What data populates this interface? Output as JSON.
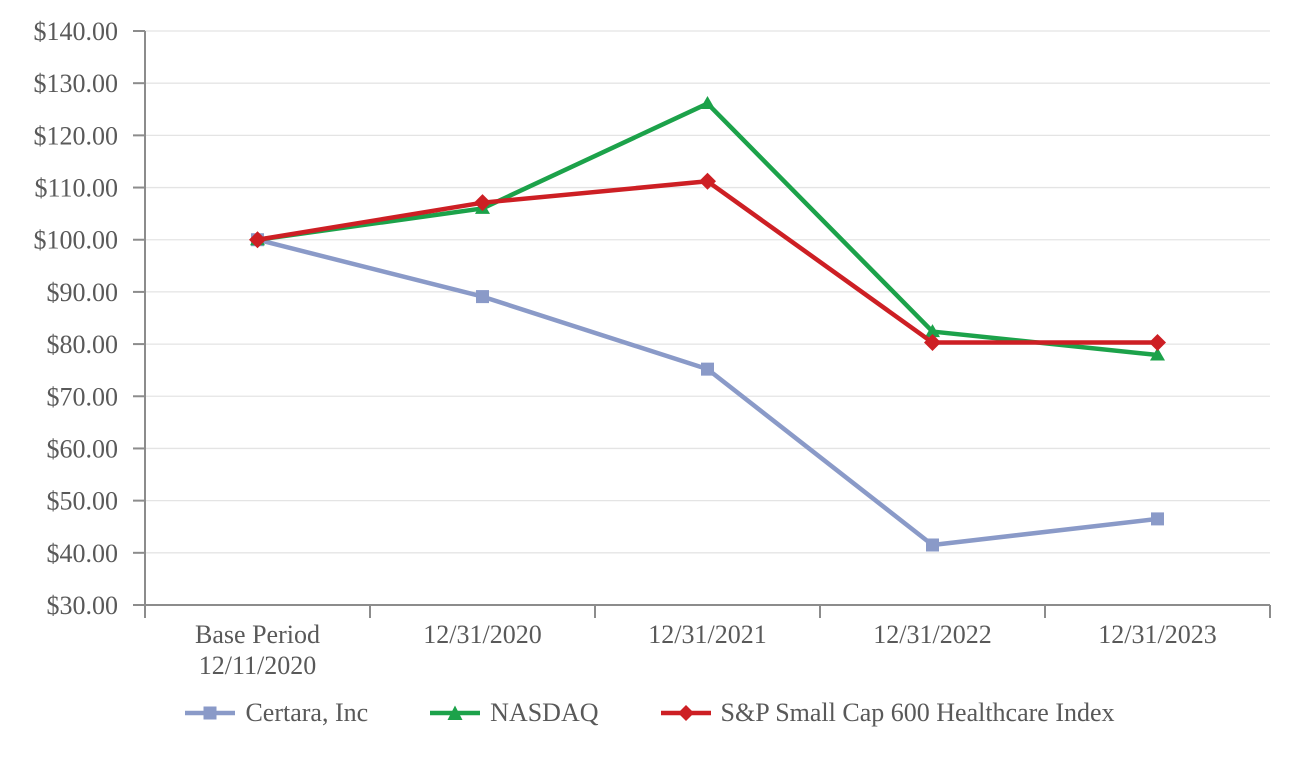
{
  "chart_data": {
    "type": "line",
    "title": "",
    "xlabel": "",
    "ylabel": "",
    "categories": [
      [
        "Base Period",
        "12/11/2020"
      ],
      [
        "12/31/2020"
      ],
      [
        "12/31/2021"
      ],
      [
        "12/31/2022"
      ],
      [
        "12/31/2023"
      ]
    ],
    "series": [
      {
        "name": "Certara, Inc",
        "marker": "square",
        "color": "#8A9AC8",
        "values": [
          100.0,
          89.1,
          75.2,
          41.5,
          46.5
        ]
      },
      {
        "name": "NASDAQ",
        "marker": "triangle",
        "color": "#1CA24A",
        "values": [
          100.0,
          106.0,
          126.1,
          82.4,
          77.9
        ]
      },
      {
        "name": "S&P Small Cap 600 Healthcare Index",
        "marker": "diamond",
        "color": "#CD1F24",
        "values": [
          100.0,
          107.1,
          111.2,
          80.3,
          80.3
        ]
      }
    ],
    "ylim": [
      30,
      140
    ],
    "y_tick_step": 10,
    "y_tick_labels": [
      "$30.00",
      "$40.00",
      "$50.00",
      "$60.00",
      "$70.00",
      "$80.00",
      "$90.00",
      "$100.00",
      "$110.00",
      "$120.00",
      "$130.00",
      "$140.00"
    ],
    "grid": "horizontal",
    "legend_position": "bottom",
    "colors": {
      "axis": "#8C8C8C",
      "grid": "#E4E4E4",
      "text": "#595959",
      "background": "#FFFFFF"
    }
  }
}
